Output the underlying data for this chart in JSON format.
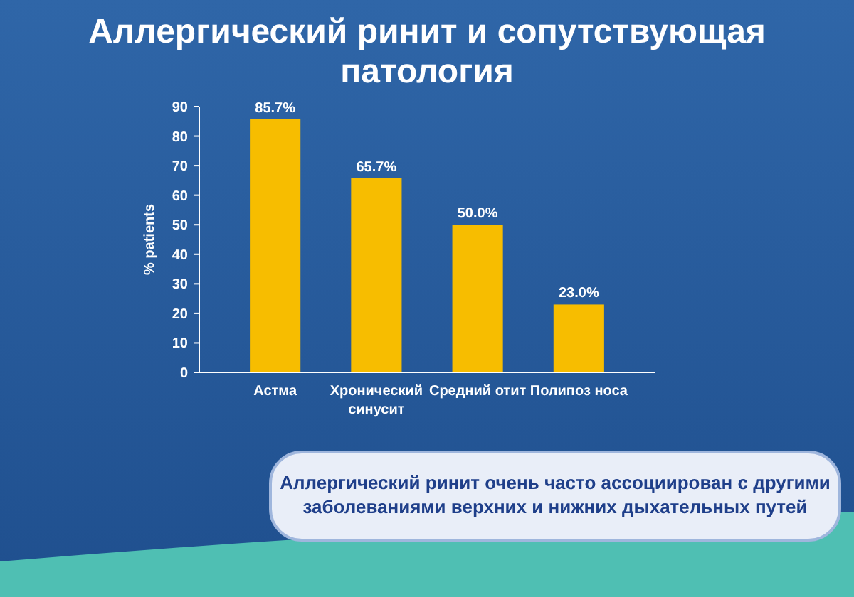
{
  "chart_data": {
    "type": "bar",
    "title": "Аллергический ринит и сопутствующая патология",
    "ylabel": "% patients",
    "categories": [
      "Астма",
      "Хронический синусит",
      "Средний отит",
      "Полипоз носа"
    ],
    "values": [
      85.7,
      65.7,
      50.0,
      23.0
    ],
    "value_labels": [
      "85.7%",
      "65.7%",
      "50.0%",
      "23.0%"
    ],
    "color": "#f7bd00",
    "ylim": [
      0,
      90
    ],
    "yticks": [
      0,
      10,
      20,
      30,
      40,
      50,
      60,
      70,
      80,
      90
    ],
    "grid": false,
    "annotations": [
      "Аллергический ринит очень часто ассоциирован с другими заболеваниями верхних и нижних дыхательных путей"
    ]
  }
}
